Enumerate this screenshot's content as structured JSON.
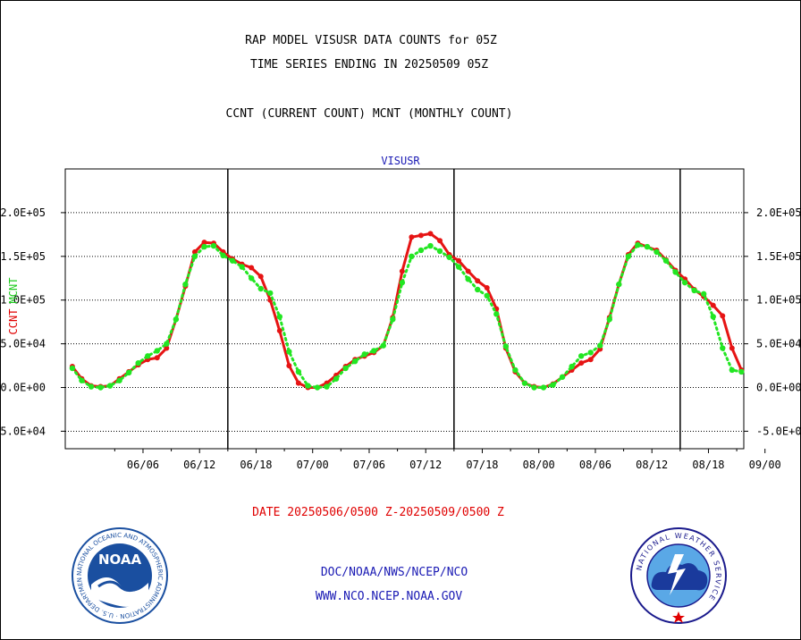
{
  "header": {
    "title_line1": "RAP MODEL VISUSR DATA COUNTS for 05Z",
    "title_line2": "TIME SERIES ENDING IN 20250509 05Z",
    "legend_line": "CCNT (CURRENT COUNT) MCNT (MONTHLY COUNT)"
  },
  "chart_data": {
    "type": "line",
    "title": "VISUSR",
    "x_tick_labels": [
      "06/06",
      "06/12",
      "06/18",
      "07/00",
      "07/06",
      "07/12",
      "07/18",
      "08/00",
      "08/06",
      "08/12",
      "08/18",
      "09/00"
    ],
    "x_hours": [
      -33,
      -31,
      -29,
      -27,
      -25,
      -23,
      -21,
      -19,
      -17,
      -15,
      -13,
      -11,
      -9,
      -7,
      -5,
      -3,
      -1,
      1,
      3,
      5,
      7,
      9,
      11,
      13,
      15,
      17,
      19,
      21,
      23,
      25,
      27,
      29,
      31,
      33,
      35,
      37,
      39,
      41,
      43,
      45,
      47,
      49,
      51,
      53,
      55,
      57,
      59,
      61,
      63,
      65,
      67,
      69,
      71,
      73,
      75,
      77,
      79,
      81,
      83,
      85,
      87,
      89,
      91,
      93,
      95,
      97,
      99,
      101,
      103,
      105,
      107,
      109
    ],
    "x_hours_note": "hours relative to 07/00",
    "left_axis": {
      "ticks": [
        -50000,
        0,
        50000,
        100000,
        150000,
        200000
      ],
      "tick_labels": [
        "-5.0E+04",
        "0.0E+00",
        "5.0E+04",
        "1.0E+05",
        "1.5E+05",
        "2.0E+05"
      ],
      "label_ccnt": "CCNT",
      "label_mcnt": "MCNT"
    },
    "right_axis": {
      "ticks": [
        -50000,
        0,
        50000,
        100000,
        150000,
        200000
      ],
      "tick_labels": [
        "-5.0E+04",
        "0.0E+00",
        "5.0E+04",
        "1.0E+05",
        "1.5E+05",
        "2.0E+05"
      ]
    },
    "ylim": [
      -70000,
      250000
    ],
    "xlim": [
      -34.5,
      109.5
    ],
    "grid": true,
    "series": [
      {
        "name": "CCNT",
        "color": "#e61414",
        "values": [
          24000,
          10000,
          2000,
          1000,
          2000,
          10000,
          18000,
          26000,
          32000,
          34000,
          45000,
          78000,
          116000,
          155000,
          166000,
          165000,
          155000,
          147000,
          141000,
          137000,
          127000,
          100000,
          65000,
          25000,
          5000,
          0,
          0,
          5000,
          14000,
          24000,
          32000,
          36000,
          40000,
          48000,
          80000,
          133000,
          172000,
          174000,
          176000,
          168000,
          152000,
          145000,
          133000,
          122000,
          114000,
          90000,
          45000,
          18000,
          5000,
          1000,
          0,
          4000,
          12000,
          20000,
          28000,
          32000,
          44000,
          80000,
          118000,
          152000,
          165000,
          161000,
          157000,
          146000,
          134000,
          124000,
          112000,
          104000,
          94000,
          82000,
          45000,
          20000
        ]
      },
      {
        "name": "MCNT",
        "color": "#22e622",
        "values": [
          22000,
          8000,
          1000,
          0,
          2000,
          8000,
          17000,
          28000,
          36000,
          42000,
          50000,
          78000,
          118000,
          150000,
          161000,
          162000,
          151000,
          145000,
          138000,
          125000,
          113000,
          108000,
          81000,
          41000,
          18000,
          2000,
          0,
          1000,
          10000,
          22000,
          30000,
          38000,
          42000,
          48000,
          78000,
          120000,
          150000,
          157000,
          162000,
          156000,
          149000,
          138000,
          124000,
          112000,
          105000,
          84000,
          47000,
          20000,
          5000,
          0,
          0,
          3000,
          12000,
          24000,
          36000,
          40000,
          48000,
          78000,
          118000,
          150000,
          163000,
          161000,
          155000,
          145000,
          132000,
          120000,
          111000,
          107000,
          81000,
          45000,
          20000,
          18000
        ]
      }
    ]
  },
  "footer": {
    "date_range": "DATE 20250506/0500 Z-20250509/0500 Z",
    "org_line": "DOC/NOAA/NWS/NCEP/NCO",
    "url_line": "WWW.NCO.NCEP.NOAA.GOV",
    "noaa_logo_text": "NOAA",
    "noaa_ring_text": "NATIONAL OCEANIC AND ATMOSPHERIC ADMINISTRATION · U.S. DEPARTMENT OF COMMERCE",
    "nws_ring_text": "NATIONAL WEATHER SERVICE"
  },
  "colors": {
    "ccnt": "#e61414",
    "mcnt": "#22e622",
    "title_blue": "#1a1ab4",
    "noaa_blue": "#1a4fa0"
  }
}
